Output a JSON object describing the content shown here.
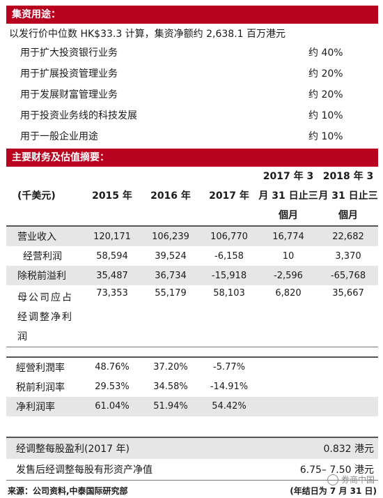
{
  "use_of_proceeds": {
    "title": "集资用途：",
    "intro": "以发行价中位数 HK$33.3 计算，集资净额约 2,638.1 百万港元",
    "items": [
      {
        "label": "用于扩大投资银行业务",
        "pct": "约 40%"
      },
      {
        "label": "用于扩展投资管理业务",
        "pct": "约 20%"
      },
      {
        "label": "用于发展财富管理业务",
        "pct": "约 20%"
      },
      {
        "label": "用于投资业务线的科技发展",
        "pct": "约 10%"
      },
      {
        "label": "用于一般企业用途",
        "pct": "约 10%"
      }
    ]
  },
  "financials": {
    "title": "主要财务及估值摘要：",
    "unit": "(千美元)",
    "columns": [
      "2015 年",
      "2016 年",
      "2017 年",
      "2017 年 3 月 31 日止三個月",
      "2018 年 3 月 31 日止三個月"
    ],
    "rows": [
      {
        "label": "营业收入",
        "values": [
          "120,171",
          "106,239",
          "106,770",
          "16,774",
          "22,682"
        ]
      },
      {
        "label": "经营利润",
        "values": [
          "58,594",
          "39,524",
          "-6,158",
          "10",
          "3,370"
        ]
      },
      {
        "label": "除税前溢利",
        "values": [
          "35,487",
          "36,734",
          "-15,918",
          "-2,596",
          "-65,768"
        ]
      },
      {
        "label": "母公司应占经调整净利润",
        "values": [
          "73,353",
          "55,179",
          "58,103",
          "6,820",
          "35,667"
        ]
      }
    ],
    "ratios": [
      {
        "label": "經營利潤率",
        "values": [
          "48.76%",
          "37.20%",
          "-5.77%"
        ]
      },
      {
        "label": "税前利润率",
        "values": [
          "29.53%",
          "34.58%",
          "-14.91%"
        ]
      },
      {
        "label": "净利润率",
        "values": [
          "61.04%",
          "51.94%",
          "54.42%"
        ]
      }
    ],
    "summary": [
      {
        "label": "经调整每股盈利(2017 年)",
        "value": "0.832 港元"
      },
      {
        "label": "发售后经调整每股有形资产净值",
        "value": "6.75– 7.50 港元"
      }
    ]
  },
  "footer": {
    "source": "来源：公司资料,中泰国际研究部",
    "note": "(年结日为 7 月 31 日)"
  },
  "watermark": "券商中国"
}
